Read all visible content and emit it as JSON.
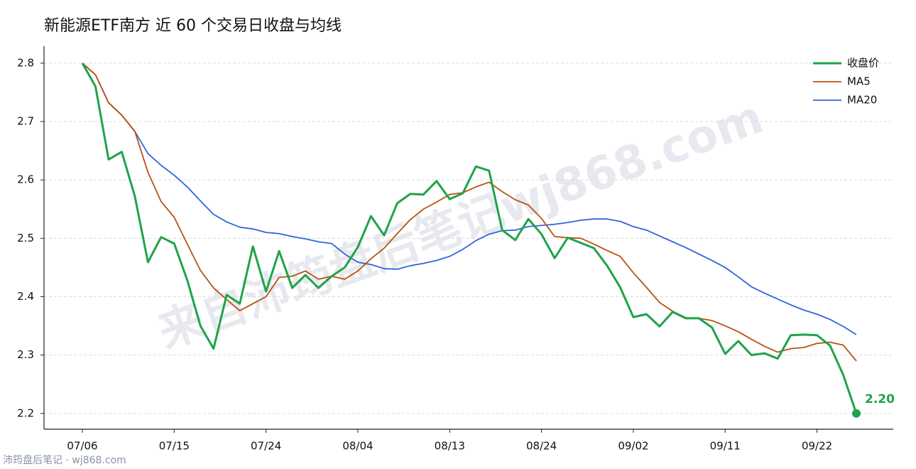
{
  "chart_data": {
    "type": "line",
    "title": "新能源ETF南方 近 60 个交易日收盘与均线",
    "watermark": "来自沛筠盘后笔记wj868.com",
    "footer": "沛筠盘后笔记 · wj868.com",
    "categories": [
      "07/06",
      null,
      null,
      null,
      null,
      null,
      null,
      "07/15",
      null,
      null,
      null,
      null,
      null,
      null,
      "07/24",
      null,
      null,
      null,
      null,
      null,
      null,
      "08/04",
      null,
      null,
      null,
      null,
      null,
      null,
      "08/13",
      null,
      null,
      null,
      null,
      null,
      null,
      "08/24",
      null,
      null,
      null,
      null,
      null,
      null,
      "09/02",
      null,
      null,
      null,
      null,
      null,
      null,
      "09/11",
      null,
      null,
      null,
      null,
      null,
      null,
      "09/22",
      null,
      null,
      null
    ],
    "series": [
      {
        "name": "收盘价",
        "color": "#1fa34a",
        "values": [
          2.8,
          2.76,
          2.635,
          2.648,
          2.572,
          2.459,
          2.502,
          2.491,
          2.428,
          2.35,
          2.311,
          2.403,
          2.388,
          2.486,
          2.409,
          2.478,
          2.415,
          2.437,
          2.415,
          2.435,
          2.45,
          2.485,
          2.538,
          2.505,
          2.56,
          2.576,
          2.575,
          2.598,
          2.567,
          2.577,
          2.623,
          2.616,
          2.514,
          2.497,
          2.533,
          2.507,
          2.466,
          2.501,
          2.492,
          2.483,
          2.453,
          2.416,
          2.365,
          2.37,
          2.349,
          2.374,
          2.363,
          2.363,
          2.347,
          2.302,
          2.324,
          2.3,
          2.303,
          2.294,
          2.334,
          2.335,
          2.334,
          2.316,
          2.266,
          2.2
        ]
      },
      {
        "name": "MA5",
        "color": "#b8520f",
        "values": [
          2.8,
          2.78,
          2.732,
          2.711,
          2.683,
          2.613,
          2.563,
          2.536,
          2.49,
          2.445,
          2.415,
          2.395,
          2.376,
          2.388,
          2.4,
          2.433,
          2.435,
          2.444,
          2.43,
          2.435,
          2.43,
          2.444,
          2.465,
          2.483,
          2.508,
          2.532,
          2.55,
          2.562,
          2.575,
          2.578,
          2.588,
          2.596,
          2.58,
          2.566,
          2.557,
          2.534,
          2.503,
          2.501,
          2.5,
          2.49,
          2.479,
          2.469,
          2.441,
          2.416,
          2.39,
          2.375,
          2.364,
          2.363,
          2.359,
          2.35,
          2.34,
          2.327,
          2.315,
          2.305,
          2.311,
          2.313,
          2.32,
          2.322,
          2.317,
          2.29
        ]
      },
      {
        "name": "MA20",
        "color": "#2f65dc",
        "values": [
          2.8,
          2.78,
          2.732,
          2.711,
          2.683,
          2.645,
          2.625,
          2.608,
          2.588,
          2.564,
          2.541,
          2.528,
          2.519,
          2.516,
          2.51,
          2.508,
          2.503,
          2.499,
          2.494,
          2.491,
          2.473,
          2.459,
          2.455,
          2.448,
          2.447,
          2.453,
          2.457,
          2.462,
          2.469,
          2.481,
          2.496,
          2.507,
          2.513,
          2.514,
          2.52,
          2.522,
          2.524,
          2.527,
          2.531,
          2.533,
          2.533,
          2.529,
          2.52,
          2.514,
          2.504,
          2.494,
          2.484,
          2.473,
          2.462,
          2.45,
          2.434,
          2.417,
          2.406,
          2.396,
          2.386,
          2.377,
          2.37,
          2.361,
          2.349,
          2.335
        ]
      }
    ],
    "last_label": "2.20",
    "ylim": [
      2.173,
      2.829
    ],
    "yticks": [
      2.2,
      2.3,
      2.4,
      2.5,
      2.6,
      2.7,
      2.8
    ],
    "grid": true,
    "legend": "upper-right"
  }
}
